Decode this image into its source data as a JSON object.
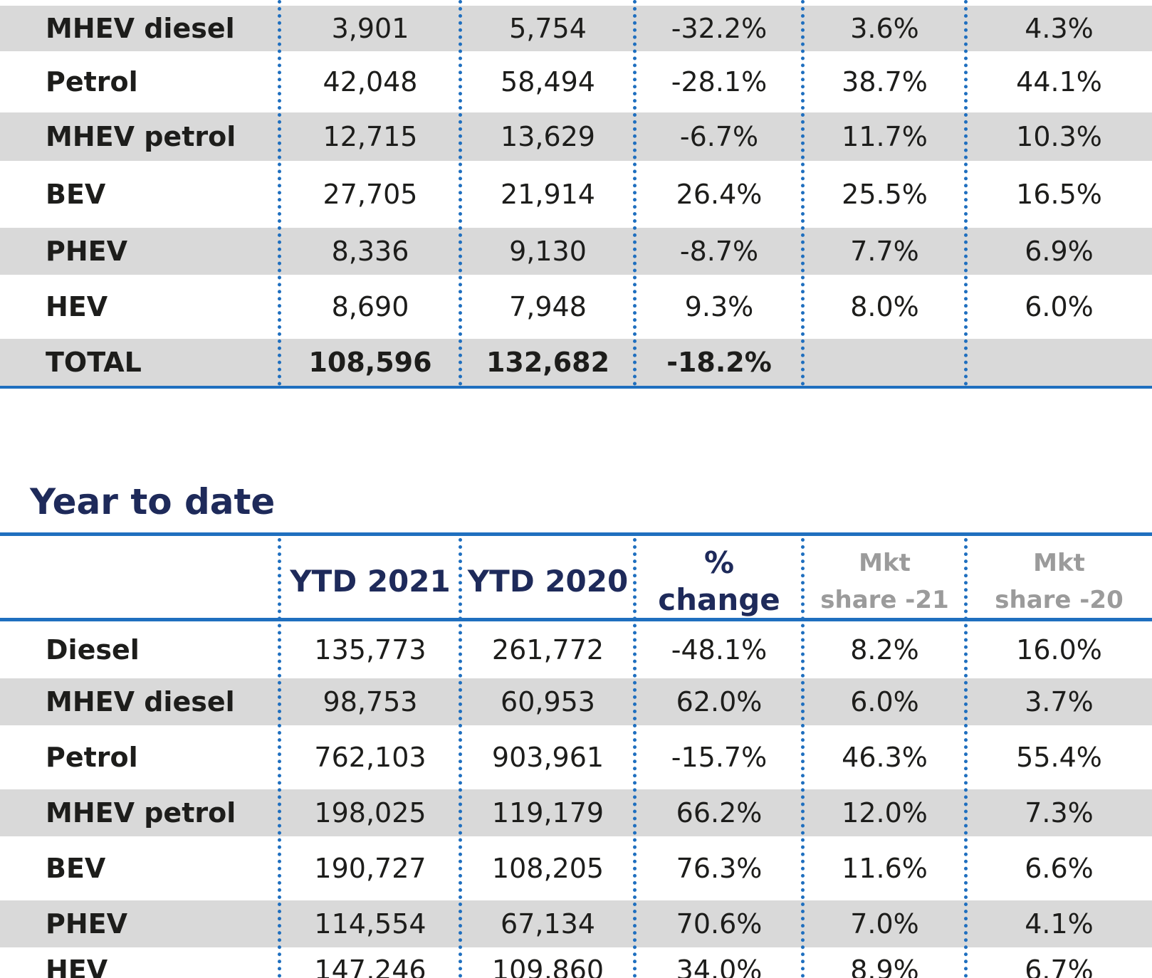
{
  "top_table": {
    "rows": [
      {
        "label": "MHEV diesel",
        "v1": "3,901",
        "v2": "5,754",
        "v3": "-32.2%",
        "v4": "3.6%",
        "v5": "4.3%"
      },
      {
        "label": "Petrol",
        "v1": "42,048",
        "v2": "58,494",
        "v3": "-28.1%",
        "v4": "38.7%",
        "v5": "44.1%"
      },
      {
        "label": "MHEV petrol",
        "v1": "12,715",
        "v2": "13,629",
        "v3": "-6.7%",
        "v4": "11.7%",
        "v5": "10.3%"
      },
      {
        "label": "BEV",
        "v1": "27,705",
        "v2": "21,914",
        "v3": "26.4%",
        "v4": "25.5%",
        "v5": "16.5%"
      },
      {
        "label": "PHEV",
        "v1": "8,336",
        "v2": "9,130",
        "v3": "-8.7%",
        "v4": "7.7%",
        "v5": "6.9%"
      },
      {
        "label": "HEV",
        "v1": "8,690",
        "v2": "7,948",
        "v3": "9.3%",
        "v4": "8.0%",
        "v5": "6.0%"
      },
      {
        "label": "TOTAL",
        "v1": "108,596",
        "v2": "132,682",
        "v3": "-18.2%",
        "v4": "",
        "v5": ""
      }
    ]
  },
  "ytd_section": {
    "title": "Year to date",
    "headers": {
      "c1": "YTD 2021",
      "c2": "YTD 2020",
      "c3_line1": "%",
      "c3_line2": "change",
      "c4_line1": "Mkt",
      "c4_line2": "share -21",
      "c5_line1": "Mkt",
      "c5_line2": "share -20"
    },
    "rows": [
      {
        "label": "Diesel",
        "v1": "135,773",
        "v2": "261,772",
        "v3": "-48.1%",
        "v4": "8.2%",
        "v5": "16.0%"
      },
      {
        "label": "MHEV diesel",
        "v1": "98,753",
        "v2": "60,953",
        "v3": "62.0%",
        "v4": "6.0%",
        "v5": "3.7%"
      },
      {
        "label": "Petrol",
        "v1": "762,103",
        "v2": "903,961",
        "v3": "-15.7%",
        "v4": "46.3%",
        "v5": "55.4%"
      },
      {
        "label": "MHEV petrol",
        "v1": "198,025",
        "v2": "119,179",
        "v3": "66.2%",
        "v4": "12.0%",
        "v5": "7.3%"
      },
      {
        "label": "BEV",
        "v1": "190,727",
        "v2": "108,205",
        "v3": "76.3%",
        "v4": "11.6%",
        "v5": "6.6%"
      },
      {
        "label": "PHEV",
        "v1": "114,554",
        "v2": "67,134",
        "v3": "70.6%",
        "v4": "7.0%",
        "v5": "4.1%"
      },
      {
        "label": "HEV",
        "v1": "147,246",
        "v2": "109,860",
        "v3": "34.0%",
        "v4": "8.9%",
        "v5": "6.7%"
      }
    ]
  }
}
